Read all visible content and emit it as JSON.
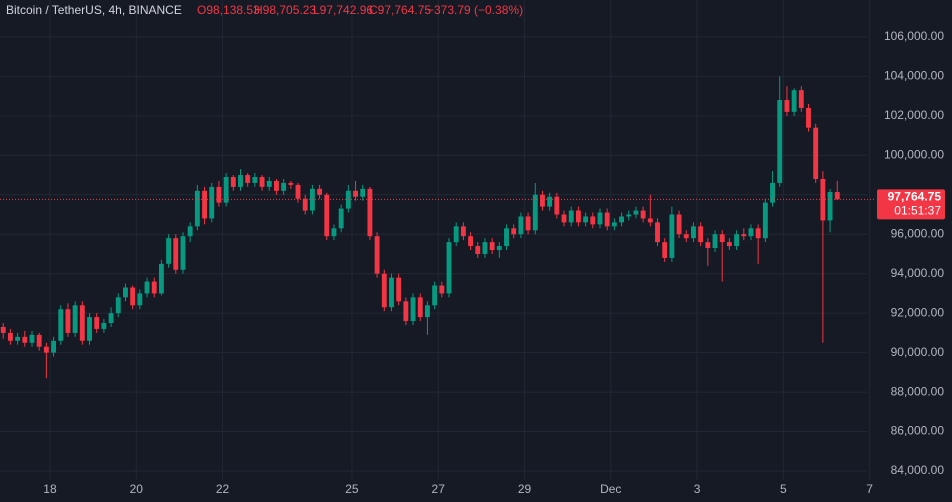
{
  "chart_data": {
    "type": "candlestick",
    "header": {
      "symbol": "Bitcoin / TetherUS, 4h, BINANCE",
      "open": "O98,138.53",
      "high": "H98,705.23",
      "low": "L97,742.96",
      "close": "C97,764.75",
      "change": "−373.79 (−0.38%)"
    },
    "last_price_label": "97,764.75",
    "countdown": "01:51:37",
    "up_color": "#089981",
    "down_color": "#f23645",
    "grid": true,
    "ylim": [
      82430,
      107870
    ],
    "yticks": [
      {
        "value": 84000,
        "label": "84,000.00"
      },
      {
        "value": 86000,
        "label": "86,000.00"
      },
      {
        "value": 88000,
        "label": "88,000.00"
      },
      {
        "value": 90000,
        "label": "90,000.00"
      },
      {
        "value": 92000,
        "label": "92,000.00"
      },
      {
        "value": 94000,
        "label": "94,000.00"
      },
      {
        "value": 96000,
        "label": "96,000.00"
      },
      {
        "value": 98000,
        "label": "98,000.00"
      },
      {
        "value": 100000,
        "label": "100,000.00"
      },
      {
        "value": 102000,
        "label": "102,000.00"
      },
      {
        "value": 104000,
        "label": "104,000.00"
      },
      {
        "value": 106000,
        "label": "106,000.00"
      }
    ],
    "xlim": [
      -0.45,
      121.25
    ],
    "xticks": [
      {
        "value": 6.5,
        "label": "18"
      },
      {
        "value": 18.5,
        "label": "20"
      },
      {
        "value": 30.5,
        "label": "22"
      },
      {
        "value": 48.5,
        "label": "25"
      },
      {
        "value": 60.5,
        "label": "27"
      },
      {
        "value": 72.5,
        "label": "29"
      },
      {
        "value": 84.5,
        "label": "Dec"
      },
      {
        "value": 96.5,
        "label": "3"
      },
      {
        "value": 108.5,
        "label": "5"
      },
      {
        "value": 120.5,
        "label": "7"
      }
    ],
    "candles": [
      [
        91300,
        91500,
        90700,
        91000
      ],
      [
        91000,
        91200,
        90400,
        90600
      ],
      [
        90600,
        91000,
        90400,
        90800
      ],
      [
        90800,
        91100,
        90300,
        90500
      ],
      [
        90500,
        91100,
        90300,
        90900
      ],
      [
        90900,
        91000,
        90100,
        90300
      ],
      [
        90300,
        90500,
        88700,
        90000
      ],
      [
        90000,
        90800,
        89800,
        90600
      ],
      [
        90600,
        92400,
        90400,
        92200
      ],
      [
        92200,
        92500,
        90800,
        91000
      ],
      [
        91000,
        92600,
        90800,
        92400
      ],
      [
        92400,
        92600,
        90400,
        90600
      ],
      [
        90600,
        92000,
        90400,
        91800
      ],
      [
        91800,
        92000,
        91000,
        91200
      ],
      [
        91200,
        91700,
        91000,
        91500
      ],
      [
        91500,
        92300,
        91300,
        92000
      ],
      [
        92000,
        93000,
        91800,
        92800
      ],
      [
        92800,
        93500,
        92600,
        93300
      ],
      [
        93300,
        93400,
        92200,
        92400
      ],
      [
        92400,
        93200,
        92200,
        93000
      ],
      [
        93000,
        93800,
        92800,
        93600
      ],
      [
        93600,
        93800,
        92800,
        93000
      ],
      [
        93000,
        94700,
        92900,
        94500
      ],
      [
        94500,
        96000,
        94300,
        95800
      ],
      [
        95800,
        96000,
        94000,
        94200
      ],
      [
        94200,
        96100,
        94000,
        95900
      ],
      [
        95900,
        96600,
        95600,
        96400
      ],
      [
        96400,
        98500,
        96200,
        98200
      ],
      [
        98200,
        98400,
        96500,
        96800
      ],
      [
        96800,
        98600,
        96600,
        98400
      ],
      [
        98400,
        98700,
        97400,
        97600
      ],
      [
        97600,
        99100,
        97400,
        98900
      ],
      [
        98900,
        99000,
        98200,
        98400
      ],
      [
        98400,
        99300,
        98200,
        99000
      ],
      [
        99000,
        99100,
        98400,
        98600
      ],
      [
        98600,
        99100,
        98400,
        98900
      ],
      [
        98900,
        99000,
        98200,
        98400
      ],
      [
        98400,
        98900,
        98200,
        98700
      ],
      [
        98700,
        98800,
        98000,
        98200
      ],
      [
        98200,
        98800,
        98000,
        98600
      ],
      [
        98600,
        98700,
        98300,
        98500
      ],
      [
        98500,
        98600,
        97600,
        97800
      ],
      [
        97800,
        98000,
        97000,
        97200
      ],
      [
        97200,
        98500,
        97000,
        98300
      ],
      [
        98300,
        98500,
        97800,
        98000
      ],
      [
        98000,
        98100,
        95700,
        95900
      ],
      [
        95900,
        96500,
        95700,
        96300
      ],
      [
        96300,
        97500,
        96100,
        97300
      ],
      [
        97300,
        98500,
        97100,
        98200
      ],
      [
        98200,
        98700,
        97700,
        97900
      ],
      [
        97900,
        98500,
        97700,
        98300
      ],
      [
        98300,
        98400,
        95700,
        95900
      ],
      [
        95900,
        96100,
        93800,
        94000
      ],
      [
        94000,
        94200,
        92100,
        92300
      ],
      [
        92300,
        94000,
        92100,
        93800
      ],
      [
        93800,
        94000,
        92400,
        92600
      ],
      [
        92600,
        92800,
        91400,
        91600
      ],
      [
        91600,
        93000,
        91400,
        92800
      ],
      [
        92800,
        93000,
        91600,
        91800
      ],
      [
        91800,
        92600,
        90900,
        92400
      ],
      [
        92400,
        93600,
        92200,
        93400
      ],
      [
        93400,
        93600,
        92800,
        93000
      ],
      [
        93000,
        95800,
        92800,
        95600
      ],
      [
        95600,
        96600,
        95400,
        96400
      ],
      [
        96400,
        96600,
        95700,
        95900
      ],
      [
        95900,
        96100,
        95200,
        95400
      ],
      [
        95400,
        95600,
        94800,
        95000
      ],
      [
        95000,
        95800,
        94800,
        95600
      ],
      [
        95600,
        95800,
        95000,
        95200
      ],
      [
        95200,
        95600,
        94800,
        95400
      ],
      [
        95400,
        96500,
        95200,
        96300
      ],
      [
        96300,
        96500,
        95800,
        96000
      ],
      [
        96000,
        97100,
        95800,
        96900
      ],
      [
        96900,
        97100,
        96000,
        96200
      ],
      [
        96200,
        98600,
        96000,
        98000
      ],
      [
        98000,
        98200,
        97200,
        97400
      ],
      [
        97400,
        98100,
        97200,
        97900
      ],
      [
        97900,
        98100,
        96800,
        97000
      ],
      [
        97000,
        97200,
        96400,
        96600
      ],
      [
        96600,
        97400,
        96400,
        97200
      ],
      [
        97200,
        97400,
        96400,
        96600
      ],
      [
        96600,
        97100,
        96400,
        96900
      ],
      [
        96900,
        97100,
        96300,
        96500
      ],
      [
        96500,
        97300,
        96300,
        97100
      ],
      [
        97100,
        97300,
        96200,
        96400
      ],
      [
        96400,
        96800,
        96200,
        96600
      ],
      [
        96600,
        97100,
        96400,
        96900
      ],
      [
        96900,
        97200,
        96700,
        97000
      ],
      [
        97000,
        97400,
        96800,
        97200
      ],
      [
        97200,
        97400,
        96600,
        96800
      ],
      [
        96800,
        98000,
        96400,
        96600
      ],
      [
        96600,
        96800,
        95400,
        95600
      ],
      [
        95600,
        95800,
        94600,
        94800
      ],
      [
        94800,
        97400,
        94600,
        97000
      ],
      [
        97000,
        97200,
        95800,
        96000
      ],
      [
        96000,
        96200,
        95600,
        95800
      ],
      [
        95800,
        96600,
        95600,
        96400
      ],
      [
        96400,
        96600,
        95400,
        95600
      ],
      [
        95600,
        95800,
        94400,
        95300
      ],
      [
        95300,
        96200,
        95100,
        96000
      ],
      [
        96000,
        96200,
        93600,
        95600
      ],
      [
        95600,
        95800,
        95200,
        95400
      ],
      [
        95400,
        96200,
        95200,
        96000
      ],
      [
        96000,
        96300,
        95700,
        95900
      ],
      [
        95900,
        96500,
        95700,
        96300
      ],
      [
        96300,
        96500,
        94500,
        95800
      ],
      [
        95800,
        97800,
        95600,
        97600
      ],
      [
        97600,
        99200,
        97400,
        98600
      ],
      [
        98600,
        104000,
        98400,
        102800
      ],
      [
        102800,
        103500,
        102000,
        102200
      ],
      [
        102200,
        103400,
        102000,
        103300
      ],
      [
        103300,
        103500,
        102200,
        102400
      ],
      [
        102400,
        102600,
        101200,
        101400
      ],
      [
        101400,
        101600,
        98600,
        98800
      ],
      [
        98800,
        99200,
        90500,
        96700
      ],
      [
        96700,
        98300,
        96100,
        98138.53
      ],
      [
        98138.53,
        98705.23,
        97742.96,
        97764.75
      ]
    ]
  }
}
